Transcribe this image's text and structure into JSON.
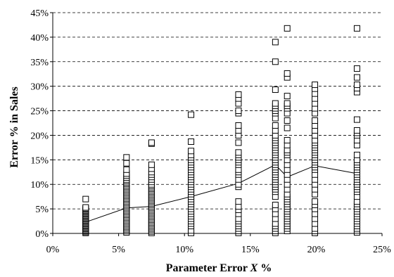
{
  "chart_data": {
    "type": "scatter",
    "title": "",
    "xlabel": "Parameter Error X %",
    "xlabel_prefix": "Parameter Error ",
    "xlabel_var": "X",
    "xlabel_suffix": " %",
    "ylabel": "Error % in Sales",
    "xlim": [
      0,
      25
    ],
    "ylim": [
      0,
      45
    ],
    "x_ticks": [
      0,
      5,
      10,
      15,
      20,
      25
    ],
    "y_ticks": [
      0,
      5,
      10,
      15,
      20,
      25,
      30,
      35,
      40,
      45
    ],
    "x_tick_labels": [
      "0%",
      "5%",
      "10%",
      "15%",
      "20%",
      "25%"
    ],
    "y_tick_labels": [
      "0%",
      "5%",
      "10%",
      "15%",
      "20%",
      "25%",
      "30%",
      "35%",
      "40%",
      "45%"
    ],
    "grid": "horizontal dashed",
    "legend": "none",
    "marker": "open-square",
    "series": [
      {
        "type": "scatter",
        "points": [
          {
            "x": 2.5,
            "y": [
              0.1,
              0.3,
              0.5,
              0.7,
              0.9,
              1.1,
              1.3,
              1.5,
              1.7,
              1.9,
              2.1,
              2.3,
              2.5,
              2.7,
              2.9,
              3.1,
              3.3,
              3.5,
              3.7,
              3.9,
              4.1,
              4.3,
              4.5,
              4.7,
              4.9,
              5.1,
              5.3,
              7.0
            ]
          },
          {
            "x": 5.6,
            "y": [
              0.2,
              0.5,
              0.8,
              1.1,
              1.4,
              1.7,
              2.0,
              2.3,
              2.6,
              2.9,
              3.2,
              3.5,
              3.8,
              4.1,
              4.4,
              4.7,
              5.0,
              5.3,
              5.6,
              5.9,
              6.2,
              6.5,
              6.8,
              7.1,
              7.4,
              7.7,
              8.0,
              8.3,
              8.6,
              8.9,
              9.2,
              9.5,
              9.8,
              10.1,
              10.4,
              10.7,
              11.0,
              11.4,
              11.8,
              12.2,
              13.0,
              14.3,
              15.5
            ]
          },
          {
            "x": 7.5,
            "y": [
              0.1,
              0.4,
              0.7,
              1.0,
              1.3,
              1.6,
              1.9,
              2.2,
              2.5,
              2.8,
              3.1,
              3.4,
              3.7,
              4.0,
              4.3,
              4.6,
              4.9,
              5.2,
              5.5,
              5.8,
              6.1,
              6.4,
              6.7,
              7.0,
              7.3,
              7.6,
              7.9,
              8.2,
              8.5,
              8.8,
              9.1,
              9.4,
              9.7,
              10.0,
              10.5,
              11.0,
              11.5,
              12.0,
              12.5,
              13.2,
              14.0,
              18.3,
              18.5
            ]
          },
          {
            "x": 10.5,
            "y": [
              0.1,
              0.6,
              1.5,
              2.0,
              2.5,
              3.0,
              3.5,
              4.0,
              4.5,
              5.0,
              5.5,
              6.0,
              6.5,
              7.0,
              7.5,
              8.0,
              8.5,
              9.0,
              9.5,
              10.0,
              10.5,
              11.0,
              11.5,
              12.0,
              12.5,
              13.0,
              13.5,
              14.0,
              14.5,
              15.0,
              15.5,
              16.0,
              16.8,
              18.7,
              24.2
            ]
          },
          {
            "x": 14.1,
            "y": [
              0.1,
              0.5,
              1.0,
              1.5,
              2.0,
              2.5,
              3.0,
              4.0,
              4.8,
              5.5,
              6.5,
              9.5,
              10.0,
              11.0,
              12.0,
              12.5,
              13.0,
              14.0,
              14.5,
              15.0,
              15.5,
              16.0,
              16.5,
              18.5,
              20.0,
              21.0,
              22.0,
              24.5,
              25.0,
              26.5,
              27.5,
              28.3
            ]
          },
          {
            "x": 16.9,
            "y": [
              0.1,
              0.5,
              1.0,
              1.5,
              2.0,
              3.0,
              4.0,
              5.0,
              5.8,
              7.5,
              8.5,
              9.0,
              9.5,
              10.0,
              10.5,
              11.0,
              11.5,
              12.0,
              12.5,
              13.0,
              13.5,
              14.0,
              14.5,
              15.0,
              15.5,
              16.0,
              16.5,
              17.0,
              17.5,
              18.0,
              18.5,
              19.0,
              19.5,
              20.0,
              21.0,
              22.0,
              23.5,
              24.5,
              25.0,
              25.5,
              26.0,
              26.5,
              29.3,
              35.0,
              39.0
            ]
          },
          {
            "x": 17.8,
            "y": [
              0.5,
              1.0,
              1.5,
              2.0,
              2.5,
              3.0,
              3.5,
              4.0,
              4.5,
              5.0,
              5.5,
              6.0,
              6.5,
              7.0,
              7.5,
              8.0,
              9.0,
              10.0,
              11.0,
              12.0,
              13.0,
              14.0,
              15.0,
              16.0,
              16.5,
              17.0,
              18.0,
              19.0,
              21.5,
              23.0,
              24.5,
              25.5,
              26.0,
              26.5,
              28.0,
              31.8,
              32.6,
              41.8
            ]
          },
          {
            "x": 19.9,
            "y": [
              0.1,
              0.5,
              1.0,
              2.0,
              3.0,
              4.0,
              5.0,
              5.8,
              6.5,
              8.0,
              9.0,
              10.0,
              11.0,
              12.0,
              13.0,
              13.5,
              14.0,
              14.5,
              15.0,
              15.5,
              16.0,
              16.5,
              17.0,
              17.5,
              18.0,
              18.5,
              19.0,
              20.0,
              21.0,
              22.0,
              23.0,
              24.5,
              25.5,
              26.5,
              27.5,
              28.5,
              29.5,
              30.3
            ]
          },
          {
            "x": 23.1,
            "y": [
              0.2,
              0.6,
              1.0,
              1.5,
              2.0,
              2.5,
              3.0,
              3.5,
              4.0,
              4.5,
              5.0,
              5.5,
              6.0,
              6.5,
              7.5,
              8.5,
              9.0,
              9.5,
              10.0,
              10.5,
              11.0,
              11.5,
              12.0,
              12.5,
              13.0,
              13.5,
              14.0,
              14.5,
              15.0,
              16.0,
              18.0,
              19.0,
              20.0,
              20.5,
              21.0,
              23.2,
              28.8,
              29.6,
              30.3,
              31.8,
              33.6,
              41.8
            ]
          }
        ]
      },
      {
        "type": "line",
        "x": [
          2.5,
          5.6,
          7.5,
          10.5,
          14.1,
          16.9,
          17.8,
          19.9,
          23.1
        ],
        "y": [
          2.3,
          5.2,
          5.5,
          7.5,
          10.2,
          14.0,
          11.5,
          13.8,
          12.2
        ]
      }
    ]
  }
}
